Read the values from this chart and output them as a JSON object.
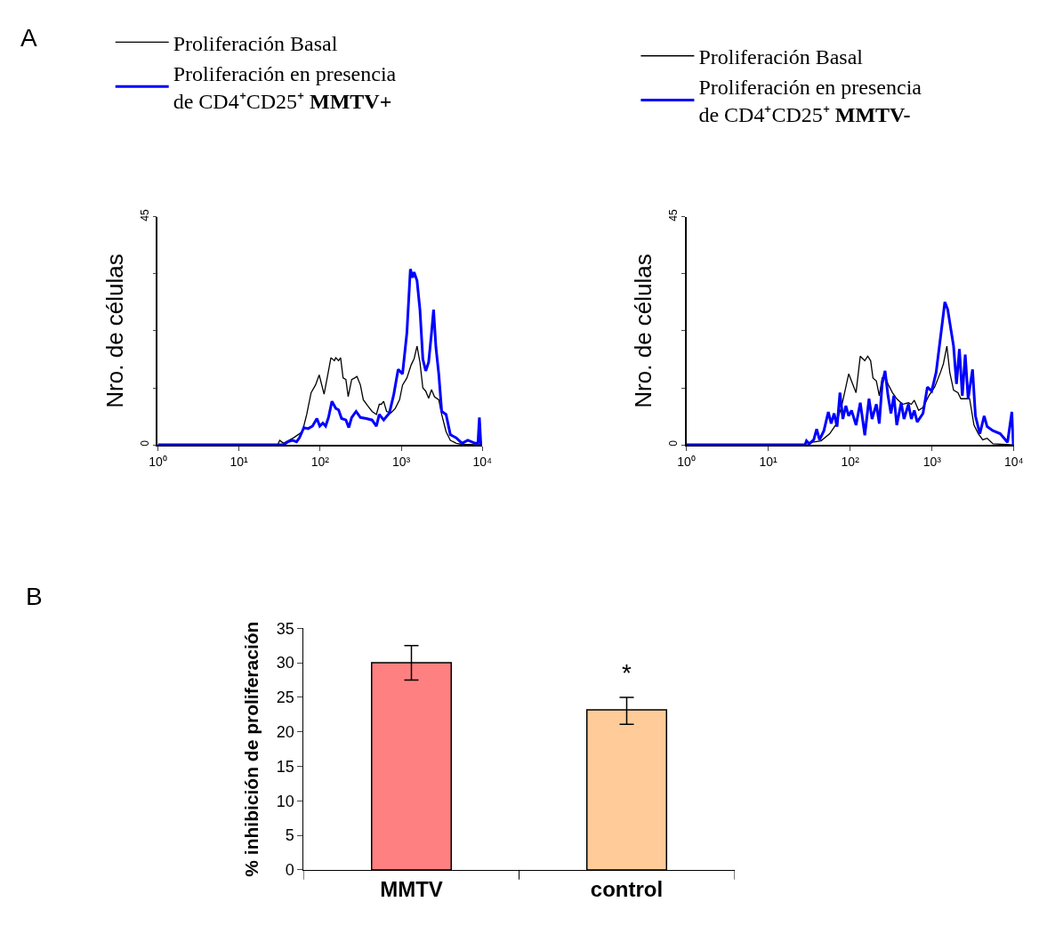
{
  "chart_data": [
    {
      "type": "line",
      "annotations": [
        "A"
      ],
      "ylabel": "Nro. de células",
      "log": "x",
      "legend": "top",
      "marker": "none",
      "line_style": "solid",
      "xlim": [
        1,
        10000
      ],
      "xticks": [
        {
          "value": 1,
          "label": "10⁰"
        },
        {
          "value": 10,
          "label": "10¹"
        },
        {
          "value": 100,
          "label": "10²"
        },
        {
          "value": 1000,
          "label": "10³"
        },
        {
          "value": 10000,
          "label": "10⁴"
        }
      ],
      "ylim": [
        0,
        45
      ],
      "yticks": [
        0,
        {
          "value": 11.25,
          "label": null
        },
        {
          "value": 22.5,
          "label": null
        },
        {
          "value": 33.75,
          "label": null
        },
        45
      ],
      "series": [
        {
          "name": "Proliferación Basal",
          "color": "#000000",
          "x": [
            1,
            30.0,
            31.8,
            35.4,
            47.2,
            60.5,
            68.4,
            77.5,
            87.7,
            97.5,
            112,
            127,
            136,
            150,
            156,
            169,
            179,
            192,
            208,
            222,
            245,
            267,
            285,
            314,
            341,
            386,
            437,
            494,
            537,
            569,
            608,
            660,
            746,
            845,
            955,
            1038,
            1175,
            1328,
            1443,
            1567,
            1702,
            1849,
            2006,
            2178,
            2365,
            2570,
            2904,
            3155,
            3573,
            4037,
            4764,
            5623,
            10000
          ],
          "values": [
            0,
            0,
            0.9,
            0.3,
            1.4,
            2.6,
            6.0,
            10.3,
            11.8,
            13.8,
            10.0,
            14.6,
            17.2,
            16.6,
            17.2,
            16.6,
            17.2,
            13.2,
            12.9,
            9.5,
            12.9,
            13.2,
            13.5,
            11.8,
            8.9,
            7.7,
            6.6,
            6.0,
            8.0,
            8.0,
            8.6,
            6.6,
            6.3,
            7.2,
            8.9,
            11.8,
            13.2,
            15.8,
            17.0,
            19.5,
            16.3,
            11.2,
            10.6,
            9.2,
            10.9,
            9.5,
            8.9,
            6.0,
            2.6,
            0.9,
            0.3,
            0.1,
            0
          ]
        },
        {
          "name": "Proliferación en presencia de CD4⁺CD25⁺ MMTV+",
          "color": "#0000ff",
          "x": [
            1,
            35.4,
            40.1,
            45.4,
            51.3,
            55.7,
            63.1,
            71.3,
            80.7,
            91.4,
            99.1,
            108,
            117,
            127,
            140,
            156,
            169,
            184,
            208,
            226,
            245,
            278,
            314,
            371,
            437,
            494,
            537,
            608,
            716,
            811,
            917,
            1038,
            1175,
            1297,
            1384,
            1443,
            1567,
            1702,
            1849,
            2006,
            2178,
            2365,
            2506,
            2680,
            2904,
            3155,
            3573,
            4037,
            4764,
            5623,
            6622,
            8147,
            8831,
            9204,
            9594
          ],
          "values": [
            0,
            0,
            0.6,
            0.9,
            0.6,
            1.4,
            3.4,
            3.2,
            3.7,
            5.2,
            3.7,
            4.3,
            3.7,
            5.4,
            8.6,
            7.2,
            6.9,
            5.2,
            4.9,
            3.4,
            5.4,
            6.6,
            5.4,
            5.2,
            4.9,
            3.7,
            6.0,
            4.9,
            6.3,
            10.0,
            14.9,
            14.0,
            22.1,
            34.7,
            33.0,
            34.1,
            32.4,
            26.7,
            16.9,
            14.6,
            16.3,
            22.1,
            26.7,
            19.2,
            14.0,
            6.6,
            6.0,
            2.0,
            1.4,
            0.3,
            0.9,
            0.3,
            0.3,
            5.4,
            0
          ]
        }
      ]
    },
    {
      "type": "line",
      "ylabel": "Nro. de células",
      "log": "x",
      "legend": "top",
      "marker": "none",
      "line_style": "solid",
      "xlim": [
        1,
        10000
      ],
      "xticks": [
        {
          "value": 1,
          "label": "10⁰"
        },
        {
          "value": 10,
          "label": "10¹"
        },
        {
          "value": 100,
          "label": "10²"
        },
        {
          "value": 1000,
          "label": "10³"
        },
        {
          "value": 10000,
          "label": "10⁴"
        }
      ],
      "ylim": [
        0,
        45
      ],
      "yticks": [
        0,
        {
          "value": 11.25,
          "label": null
        },
        {
          "value": 22.5,
          "label": null
        },
        {
          "value": 33.75,
          "label": null
        },
        45
      ],
      "series": [
        {
          "name": "Proliferación Basal",
          "color": "#000000",
          "x": [
            1,
            30.5,
            34.5,
            44.1,
            56.3,
            66.4,
            78.2,
            96.0,
            118,
            133,
            151,
            164,
            178,
            190,
            209,
            227,
            246,
            267,
            290,
            328,
            371,
            437,
            515,
            559,
            607,
            686,
            776,
            914,
            1076,
            1268,
            1377,
            1518,
            1648,
            1832,
            2073,
            2250,
            2877,
            3251,
            3680,
            4159,
            4710,
            5546,
            10000
          ],
          "values": [
            0,
            0,
            0.5,
            0.8,
            2.2,
            3.9,
            7.4,
            14.0,
            10.3,
            17.5,
            16.6,
            17.5,
            16.6,
            13.2,
            12.6,
            9.7,
            13.2,
            13.7,
            12.0,
            10.3,
            9.1,
            8.0,
            8.3,
            8.0,
            8.8,
            6.8,
            7.4,
            9.7,
            11.4,
            14.3,
            16.0,
            19.5,
            14.3,
            10.8,
            10.3,
            9.1,
            9.1,
            3.9,
            2.2,
            1.0,
            1.3,
            0.2,
            0
          ]
        },
        {
          "name": "Proliferación en presencia de CD4⁺CD25⁺ MMTV-",
          "color": "#0000ff",
          "x": [
            1,
            28.1,
            29.3,
            31.7,
            35.9,
            39.0,
            42.3,
            47.8,
            54.1,
            58.7,
            63.7,
            69.2,
            75.1,
            81.5,
            88.5,
            96.0,
            104,
            118,
            133,
            151,
            170,
            185,
            209,
            227,
            246,
            267,
            290,
            315,
            342,
            371,
            420,
            455,
            515,
            559,
            607,
            659,
            776,
            877,
            991,
            1122,
            1217,
            1321,
            1434,
            1556,
            1690,
            1832,
            1990,
            2160,
            2344,
            2545,
            2761,
            3126,
            3388,
            3837,
            4335,
            4710,
            5546,
            6808,
            8356,
            9441,
            9840
          ],
          "values": [
            0,
            0,
            0.8,
            0.2,
            1.0,
            3.1,
            1.0,
            2.8,
            6.5,
            4.2,
            6.2,
            3.6,
            10.3,
            5.1,
            7.7,
            5.7,
            6.8,
            3.9,
            8.3,
            1.9,
            9.1,
            5.1,
            8.0,
            4.2,
            12.0,
            14.6,
            9.7,
            6.2,
            9.7,
            3.9,
            8.3,
            5.1,
            8.0,
            5.1,
            6.8,
            4.5,
            6.2,
            11.4,
            10.6,
            14.3,
            18.9,
            23.5,
            28.2,
            26.7,
            23.0,
            19.5,
            12.0,
            18.9,
            9.7,
            17.8,
            9.1,
            14.9,
            5.7,
            2.2,
            5.7,
            3.6,
            2.8,
            2.2,
            0.5,
            6.5,
            0
          ]
        }
      ]
    },
    {
      "type": "bar",
      "annotations": [
        "B",
        "*"
      ],
      "ylabel": "% inhibición de proliferación",
      "categories": [
        "MMTV",
        "control"
      ],
      "values": [
        30,
        23.2
      ],
      "colors": [
        "#ff8080",
        "#ffcc99"
      ],
      "errors": [
        2.5,
        [
          21.1,
          25.0
        ]
      ],
      "ylim": [
        0,
        35
      ],
      "yticks": [
        0,
        5,
        10,
        15,
        20,
        25,
        30,
        35
      ]
    }
  ]
}
